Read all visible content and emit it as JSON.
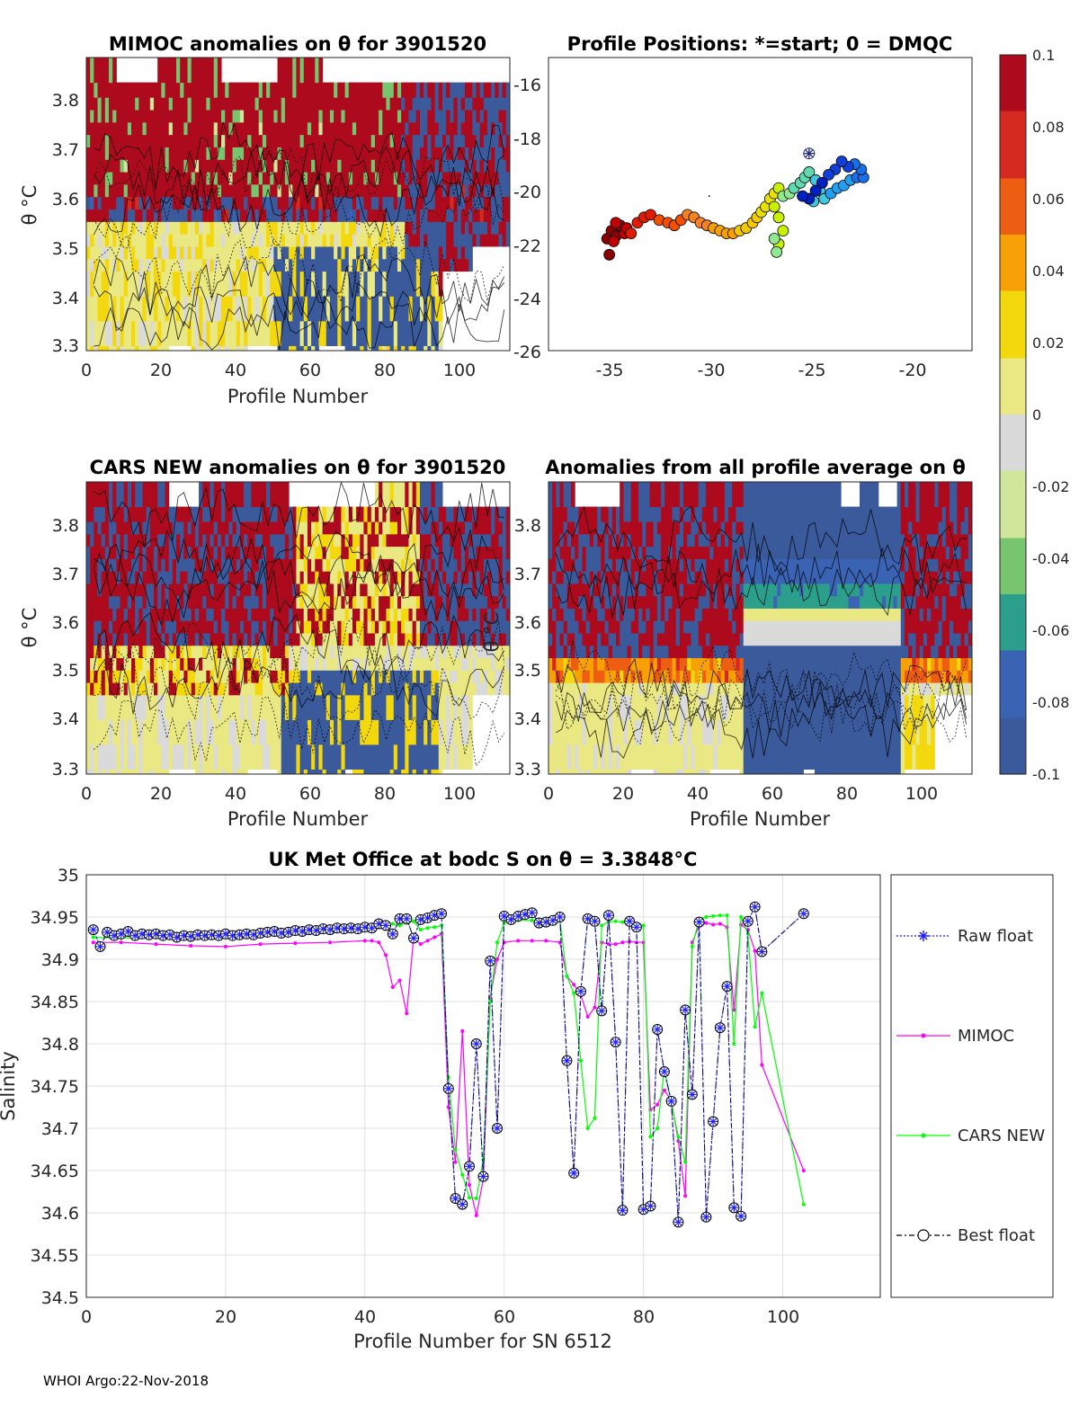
{
  "footer": "WHOI Argo:22-Nov-2018",
  "colorbar": {
    "ticks": [
      "0.1",
      "0.08",
      "0.06",
      "0.04",
      "0.02",
      "0",
      "-0.02",
      "-0.04",
      "-0.06",
      "-0.08",
      "-0.1"
    ],
    "colors": [
      "#ad0a1e",
      "#d42a20",
      "#ee5e12",
      "#f7a106",
      "#f2d80c",
      "#e9e883",
      "#dadada",
      "#cfe69b",
      "#78c56f",
      "#2b9f8c",
      "#3b63b4",
      "#3a5a9c"
    ]
  },
  "panels": {
    "mimoc": {
      "title": "MIMOC anomalies on θ  for 3901520",
      "xlabel": "Profile Number",
      "ylabel": "θ °C",
      "xticks": [
        "0",
        "20",
        "40",
        "60",
        "80",
        "100"
      ],
      "yticks": [
        "3.8",
        "3.7",
        "3.6",
        "3.5",
        "3.4",
        "3.3"
      ]
    },
    "positions": {
      "title": "Profile Positions: *=start; 0 = DMQC",
      "xticks": [
        "-35",
        "-30",
        "-25",
        "-20"
      ],
      "yticks": [
        "-16",
        "-18",
        "-20",
        "-22",
        "-24",
        "-26"
      ]
    },
    "cars": {
      "title": "CARS NEW anomalies on θ for 3901520",
      "xlabel": "Profile Number",
      "ylabel": "θ °C",
      "xticks": [
        "0",
        "20",
        "40",
        "60",
        "80",
        "100"
      ],
      "yticks": [
        "3.8",
        "3.7",
        "3.6",
        "3.5",
        "3.4",
        "3.3"
      ]
    },
    "average": {
      "title": "Anomalies from all profile average on θ",
      "xlabel": "Profile Number",
      "ylabel": "θ °C",
      "xticks": [
        "0",
        "20",
        "40",
        "60",
        "80",
        "100"
      ],
      "yticks": [
        "3.8",
        "3.7",
        "3.6",
        "3.5",
        "3.4",
        "3.3"
      ]
    },
    "salinity": {
      "title": "UK Met Office at bodc S on θ = 3.3848°C",
      "xlabel": "Profile Number for SN 6512",
      "ylabel": "Salinity",
      "xticks": [
        "0",
        "20",
        "40",
        "60",
        "80",
        "100"
      ],
      "yticks": [
        "35",
        "34.95",
        "34.9",
        "34.85",
        "34.8",
        "34.75",
        "34.7",
        "34.65",
        "34.6",
        "34.55",
        "34.5"
      ],
      "legend": [
        "Raw float",
        "MIMOC",
        "CARS NEW",
        "Best float"
      ]
    }
  },
  "chart_data": [
    {
      "type": "heatmap",
      "title": "MIMOC anomalies on θ  for 3901520",
      "xlabel": "Profile Number",
      "ylabel": "θ °C",
      "xlim": [
        0,
        113
      ],
      "ylim": [
        3.29,
        3.88
      ],
      "clim": [
        -0.1,
        0.1
      ]
    },
    {
      "type": "scatter",
      "title": "Profile Positions: *=start; 0 = DMQC",
      "xlim": [
        -37,
        -17.5
      ],
      "ylim": [
        -26,
        -15
      ],
      "start": [
        -25.0,
        -18.6
      ],
      "positions": [
        [
          -34.2,
          -22.4
        ],
        [
          -34.3,
          -21.8
        ],
        [
          -34.1,
          -21.5
        ],
        [
          -33.9,
          -21.7
        ],
        [
          -33.7,
          -21.3
        ],
        [
          -33.5,
          -21.6
        ],
        [
          -33.9,
          -21.2
        ],
        [
          -34.0,
          -21.9
        ],
        [
          -33.4,
          -21.4
        ],
        [
          -33.2,
          -21.6
        ],
        [
          -32.9,
          -21.2
        ],
        [
          -32.6,
          -21.0
        ],
        [
          -32.3,
          -20.9
        ],
        [
          -31.9,
          -21.1
        ],
        [
          -31.5,
          -21.2
        ],
        [
          -31.2,
          -21.3
        ],
        [
          -30.9,
          -21.1
        ],
        [
          -30.6,
          -20.9
        ],
        [
          -30.3,
          -21.0
        ],
        [
          -30.0,
          -21.2
        ],
        [
          -29.7,
          -21.3
        ],
        [
          -29.4,
          -21.4
        ],
        [
          -29.1,
          -21.5
        ],
        [
          -28.8,
          -21.6
        ],
        [
          -28.5,
          -21.6
        ],
        [
          -28.2,
          -21.5
        ],
        [
          -27.9,
          -21.4
        ],
        [
          -27.6,
          -21.2
        ],
        [
          -27.4,
          -21.0
        ],
        [
          -27.2,
          -20.8
        ],
        [
          -27.0,
          -20.6
        ],
        [
          -26.8,
          -20.3
        ],
        [
          -26.6,
          -20.1
        ],
        [
          -26.4,
          -19.9
        ],
        [
          -26.6,
          -20.6
        ],
        [
          -26.4,
          -21.0
        ],
        [
          -26.2,
          -21.5
        ],
        [
          -26.4,
          -22.0
        ],
        [
          -26.6,
          -21.8
        ],
        [
          -26.5,
          -22.3
        ],
        [
          -26.2,
          -20.2
        ],
        [
          -25.9,
          -20.1
        ],
        [
          -25.7,
          -19.9
        ],
        [
          -25.4,
          -19.7
        ],
        [
          -25.2,
          -19.5
        ],
        [
          -25.0,
          -19.3
        ],
        [
          -24.7,
          -19.6
        ],
        [
          -24.5,
          -20.0
        ],
        [
          -24.8,
          -20.4
        ],
        [
          -24.3,
          -20.3
        ],
        [
          -24.0,
          -20.1
        ],
        [
          -23.7,
          -19.9
        ],
        [
          -23.4,
          -19.8
        ],
        [
          -23.1,
          -19.6
        ],
        [
          -22.8,
          -19.5
        ],
        [
          -22.5,
          -19.5
        ],
        [
          -22.6,
          -19.2
        ],
        [
          -22.9,
          -19.0
        ],
        [
          -23.2,
          -19.1
        ],
        [
          -23.5,
          -18.9
        ],
        [
          -23.8,
          -19.2
        ],
        [
          -24.1,
          -19.4
        ],
        [
          -24.4,
          -19.7
        ],
        [
          -24.7,
          -20.0
        ],
        [
          -25.0,
          -20.3
        ],
        [
          -25.3,
          -20.2
        ]
      ]
    },
    {
      "type": "heatmap",
      "title": "CARS NEW anomalies on θ for 3901520",
      "xlabel": "Profile Number",
      "ylabel": "θ °C",
      "xlim": [
        0,
        113
      ],
      "ylim": [
        3.29,
        3.88
      ],
      "clim": [
        -0.1,
        0.1
      ]
    },
    {
      "type": "heatmap",
      "title": "Anomalies from all profile average on θ",
      "xlabel": "Profile Number",
      "ylabel": "θ °C",
      "xlim": [
        0,
        113
      ],
      "ylim": [
        3.29,
        3.88
      ],
      "clim": [
        -0.1,
        0.1
      ]
    },
    {
      "type": "line",
      "title": "UK Met Office at bodc S on θ = 3.3848°C",
      "xlabel": "Profile Number for SN 6512",
      "ylabel": "Salinity",
      "xlim": [
        0,
        114
      ],
      "ylim": [
        34.5,
        35.0
      ],
      "series": [
        {
          "name": "Best float",
          "x": [
            1,
            2,
            3,
            4,
            5,
            6,
            7,
            8,
            9,
            10,
            11,
            12,
            13,
            14,
            15,
            16,
            17,
            18,
            19,
            20,
            21,
            22,
            23,
            24,
            25,
            26,
            27,
            28,
            29,
            30,
            31,
            32,
            33,
            34,
            35,
            36,
            37,
            38,
            39,
            40,
            41,
            42,
            43,
            44,
            45,
            46,
            47,
            48,
            49,
            50,
            51,
            52,
            53,
            54,
            55,
            56,
            57,
            58,
            59,
            60,
            61,
            62,
            63,
            64,
            65,
            66,
            67,
            68,
            69,
            70,
            71,
            72,
            73,
            74,
            75,
            76,
            77,
            78,
            79,
            80,
            81,
            82,
            83,
            84,
            85,
            86,
            87,
            88,
            89,
            90,
            91,
            92,
            93,
            94,
            95,
            96,
            97,
            103
          ],
          "y": [
            34.935,
            34.915,
            34.932,
            34.928,
            34.93,
            34.933,
            34.928,
            34.93,
            34.929,
            34.93,
            34.928,
            34.929,
            34.926,
            34.928,
            34.927,
            34.929,
            34.928,
            34.929,
            34.928,
            34.93,
            34.928,
            34.929,
            34.93,
            34.929,
            34.931,
            34.932,
            34.933,
            34.931,
            34.932,
            34.934,
            34.933,
            34.935,
            34.934,
            34.936,
            34.935,
            34.937,
            34.936,
            34.937,
            34.936,
            34.938,
            34.937,
            34.942,
            34.94,
            34.93,
            34.948,
            34.948,
            34.925,
            34.947,
            34.949,
            34.952,
            34.954,
            34.747,
            34.617,
            34.61,
            34.655,
            34.8,
            34.643,
            34.898,
            34.7,
            34.951,
            34.947,
            34.951,
            34.953,
            34.955,
            34.943,
            34.944,
            34.946,
            34.95,
            34.78,
            34.647,
            34.862,
            34.948,
            34.945,
            34.839,
            34.952,
            34.802,
            34.603,
            34.945,
            34.938,
            34.604,
            34.608,
            34.817,
            34.767,
            34.732,
            34.589,
            34.84,
            34.74,
            34.944,
            34.595,
            34.708,
            34.819,
            34.868,
            34.606,
            34.596,
            34.945,
            34.962,
            34.909,
            34.954
          ]
        },
        {
          "name": "MIMOC",
          "x": [
            1,
            5,
            10,
            15,
            20,
            25,
            30,
            35,
            40,
            41,
            42,
            43,
            44,
            45,
            46,
            47,
            48,
            49,
            50,
            51,
            52,
            53,
            54,
            55,
            56,
            57,
            58,
            59,
            60,
            62,
            64,
            66,
            68,
            69,
            70,
            71,
            72,
            73,
            74,
            75,
            76,
            77,
            78,
            79,
            80,
            81,
            82,
            83,
            84,
            85,
            86,
            87,
            88,
            89,
            90,
            91,
            92,
            93,
            94,
            95,
            96,
            97,
            103
          ],
          "y": [
            34.92,
            34.92,
            34.918,
            34.916,
            34.915,
            34.918,
            34.919,
            34.92,
            34.922,
            34.922,
            34.92,
            34.905,
            34.867,
            34.875,
            34.836,
            34.925,
            34.918,
            34.922,
            34.926,
            34.93,
            34.725,
            34.66,
            34.815,
            34.633,
            34.597,
            34.64,
            34.855,
            34.9,
            34.92,
            34.922,
            34.922,
            34.922,
            34.92,
            34.88,
            34.87,
            34.858,
            34.832,
            34.843,
            34.92,
            34.918,
            34.918,
            34.92,
            34.921,
            34.92,
            34.92,
            34.722,
            34.728,
            34.745,
            34.733,
            34.685,
            34.62,
            34.92,
            34.94,
            34.943,
            34.941,
            34.942,
            34.938,
            34.84,
            34.941,
            34.935,
            34.91,
            34.775,
            34.65
          ]
        },
        {
          "name": "CARS NEW",
          "x": [
            1,
            5,
            10,
            15,
            20,
            25,
            30,
            35,
            40,
            41,
            42,
            43,
            44,
            45,
            46,
            47,
            48,
            49,
            50,
            51,
            52,
            53,
            54,
            55,
            56,
            57,
            58,
            59,
            60,
            62,
            64,
            66,
            68,
            69,
            70,
            71,
            72,
            73,
            74,
            75,
            76,
            77,
            78,
            79,
            80,
            81,
            82,
            83,
            84,
            85,
            86,
            87,
            88,
            89,
            90,
            91,
            92,
            93,
            94,
            95,
            96,
            97,
            103
          ],
          "y": [
            34.926,
            34.925,
            34.926,
            34.927,
            34.93,
            34.929,
            34.932,
            34.935,
            34.936,
            34.937,
            34.938,
            34.94,
            34.942,
            34.94,
            34.943,
            34.945,
            34.935,
            34.937,
            34.938,
            34.94,
            34.76,
            34.675,
            34.645,
            34.618,
            34.617,
            34.663,
            34.85,
            34.92,
            34.943,
            34.946,
            34.946,
            34.946,
            34.946,
            34.88,
            34.86,
            34.78,
            34.7,
            34.712,
            34.94,
            34.944,
            34.945,
            34.944,
            34.943,
            34.94,
            34.94,
            34.69,
            34.7,
            34.77,
            34.73,
            34.69,
            34.66,
            34.915,
            34.948,
            34.95,
            34.951,
            34.952,
            34.952,
            34.8,
            34.95,
            34.93,
            34.82,
            34.86,
            34.61
          ]
        }
      ]
    }
  ]
}
